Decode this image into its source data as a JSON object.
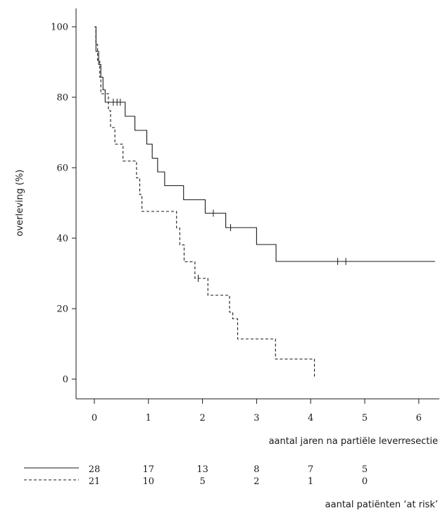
{
  "chart_data": {
    "type": "line",
    "subtype": "kaplan-meier",
    "xlabel": "aantal jaren na partiële leverresectie",
    "ylabel": "overleving (%)",
    "xlim": [
      0,
      6.3
    ],
    "ylim": [
      0,
      100
    ],
    "x_ticks": [
      "0",
      "1",
      "2",
      "3",
      "4",
      "5",
      "6"
    ],
    "y_ticks": [
      "0",
      "20",
      "40",
      "60",
      "80",
      "100"
    ],
    "grid": false,
    "series": [
      {
        "style": "solid",
        "steps": [
          [
            0,
            100
          ],
          [
            0.03,
            93
          ],
          [
            0.08,
            89.3
          ],
          [
            0.12,
            85.7
          ],
          [
            0.16,
            82.1
          ],
          [
            0.2,
            78.6
          ],
          [
            0.57,
            74.6
          ],
          [
            0.75,
            70.6
          ],
          [
            0.97,
            66.7
          ],
          [
            1.07,
            62.7
          ],
          [
            1.17,
            58.8
          ],
          [
            1.3,
            54.9
          ],
          [
            1.65,
            50.9
          ],
          [
            2.05,
            47.1
          ],
          [
            2.43,
            43.0
          ],
          [
            3.0,
            38.2
          ],
          [
            3.36,
            33.4
          ],
          [
            6.3,
            33.4
          ]
        ],
        "censored": [
          [
            0.35,
            78.6
          ],
          [
            0.42,
            78.6
          ],
          [
            0.48,
            78.6
          ],
          [
            2.2,
            47.1
          ],
          [
            2.52,
            43.0
          ],
          [
            4.5,
            33.4
          ],
          [
            4.65,
            33.4
          ]
        ]
      },
      {
        "style": "dashed",
        "steps": [
          [
            0,
            100
          ],
          [
            0.03,
            95
          ],
          [
            0.06,
            90.5
          ],
          [
            0.1,
            85.7
          ],
          [
            0.12,
            81.0
          ],
          [
            0.26,
            76.2
          ],
          [
            0.3,
            71.4
          ],
          [
            0.38,
            66.7
          ],
          [
            0.53,
            61.9
          ],
          [
            0.78,
            57.1
          ],
          [
            0.84,
            52.4
          ],
          [
            0.88,
            47.6
          ],
          [
            1.52,
            42.9
          ],
          [
            1.58,
            38.1
          ],
          [
            1.66,
            33.3
          ],
          [
            1.86,
            28.6
          ],
          [
            2.1,
            23.8
          ],
          [
            2.5,
            19.0
          ],
          [
            2.56,
            17.1
          ],
          [
            2.65,
            11.4
          ],
          [
            3.35,
            5.7
          ],
          [
            4.07,
            5.7
          ],
          [
            4.07,
            0.5
          ]
        ],
        "censored": [
          [
            1.92,
            28.6
          ]
        ]
      }
    ],
    "at_risk": {
      "title": "aantal patiënten ‘at risk’",
      "solid": [
        "28",
        "17",
        "13",
        "8",
        "7",
        "5"
      ],
      "dashed": [
        "21",
        "10",
        "5",
        "2",
        "1",
        "0"
      ]
    }
  }
}
